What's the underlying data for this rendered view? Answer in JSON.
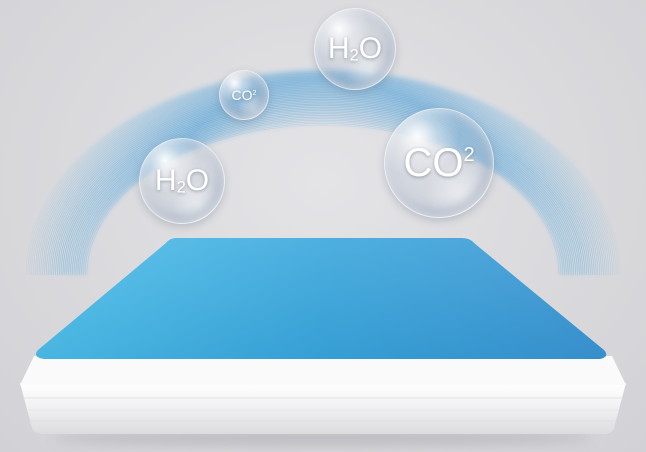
{
  "bubbles": {
    "h2o_top": {
      "base": "H",
      "script": "2",
      "tail": "O"
    },
    "co2_small": {
      "base": "CO",
      "script": "2"
    },
    "h2o_left": {
      "base": "H",
      "script": "2",
      "tail": "O"
    },
    "co2_large": {
      "base": "CO",
      "script": "2"
    }
  },
  "colors": {
    "background": "#d9d9dc",
    "membrane_blue": "#3aa7dc",
    "arc_blue": "#4aa3d8",
    "base_white": "#f4f4f6"
  }
}
